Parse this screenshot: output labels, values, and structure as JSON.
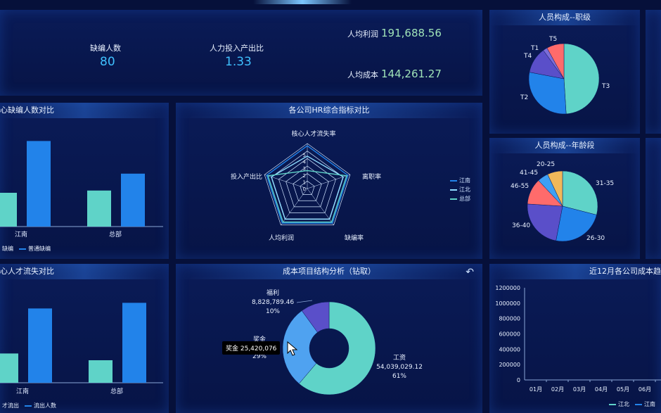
{
  "kpi": {
    "vacancy_label": "缺编人数",
    "vacancy_value": "80",
    "ratio_label": "人力投入产出比",
    "ratio_value": "1.33",
    "profit_label": "人均利润",
    "profit_value": "191,688.56",
    "cost_label": "人均成本",
    "cost_value": "144,261.27"
  },
  "panels": {
    "vacancy_title": "心缺编人数对比",
    "radar_title": "各公司HR综合指标对比",
    "loss_title": "心人才流失对比",
    "cost_title": "成本项目结构分析（钻取）",
    "rank_title": "人员构成--职级",
    "age_title": "人员构成--年龄段",
    "trend_title": "近12月各公司成本趋"
  },
  "vacancy_chart": {
    "categories": [
      "江南",
      "总部"
    ],
    "legend": [
      "缺编",
      "普通缺编"
    ],
    "colors": [
      "#5fd3c8",
      "#2283ea"
    ]
  },
  "loss_chart": {
    "categories": [
      "江南",
      "总部"
    ],
    "legend": [
      "才流出",
      "流出人数"
    ],
    "colors": [
      "#5fd3c8",
      "#2283ea"
    ]
  },
  "radar": {
    "indicators": [
      "核心人才流失率",
      "离职率",
      "缺编率",
      "人均利润",
      "投入产出比"
    ],
    "ticks": [
      "0",
      "1",
      "2",
      "3",
      "4",
      "5"
    ],
    "legend": [
      "江南",
      "江北",
      "总部"
    ],
    "colors": [
      "#2283ea",
      "#8fdcff",
      "#5fd3c8"
    ]
  },
  "cost_pie": {
    "labels": [
      {
        "name": "福利",
        "value": "8,828,789.46",
        "pct": "10%"
      },
      {
        "name": "奖金",
        "value": "25,420,076",
        "pct": "29%"
      },
      {
        "name": "工资",
        "value": "54,039,029.12",
        "pct": "61%"
      }
    ],
    "tooltip": "奖金 25,420,076",
    "back_icon": "undo-arrow-icon"
  },
  "rank_pie": {
    "labels": [
      "T5",
      "T1",
      "T4",
      "T2",
      "T3"
    ]
  },
  "age_pie": {
    "labels": [
      "20-25",
      "41-45",
      "46-55",
      "31-35",
      "36-40",
      "26-30"
    ]
  },
  "trend": {
    "yticks": [
      "1200000",
      "1000000",
      "800000",
      "600000",
      "400000",
      "200000",
      "0"
    ],
    "xticks": [
      "01月",
      "02月",
      "03月",
      "04月",
      "05月",
      "06月"
    ],
    "legend": [
      "江北",
      "江南"
    ]
  },
  "chart_data": [
    {
      "type": "bar",
      "title": "心缺编人数对比",
      "categories": [
        "江南",
        "总部"
      ],
      "series": [
        {
          "name": "缺编",
          "values": [
            30,
            32
          ]
        },
        {
          "name": "普通缺编",
          "values": [
            76,
            47
          ]
        }
      ]
    },
    {
      "type": "bar",
      "title": "心人才流失对比",
      "categories": [
        "江南",
        "总部"
      ],
      "series": [
        {
          "name": "才流出",
          "values": [
            26,
            20
          ]
        },
        {
          "name": "流出人数",
          "values": [
            66,
            71
          ]
        }
      ]
    },
    {
      "type": "pie",
      "title": "成本项目结构分析（钻取）",
      "slices": [
        {
          "name": "工资",
          "value": 54039029.12
        },
        {
          "name": "奖金",
          "value": 25420076
        },
        {
          "name": "福利",
          "value": 8828789.46
        }
      ]
    },
    {
      "type": "pie",
      "title": "人员构成--职级",
      "slices": [
        {
          "name": "T3",
          "value": 49
        },
        {
          "name": "T2",
          "value": 29
        },
        {
          "name": "T4",
          "value": 12
        },
        {
          "name": "T1",
          "value": 2
        },
        {
          "name": "T5",
          "value": 8
        }
      ]
    },
    {
      "type": "pie",
      "title": "人员构成--年龄段",
      "slices": [
        {
          "name": "31-35",
          "value": 29
        },
        {
          "name": "26-30",
          "value": 24
        },
        {
          "name": "36-40",
          "value": 23
        },
        {
          "name": "46-55",
          "value": 12
        },
        {
          "name": "41-45",
          "value": 5
        },
        {
          "name": "20-25",
          "value": 7
        }
      ]
    }
  ]
}
